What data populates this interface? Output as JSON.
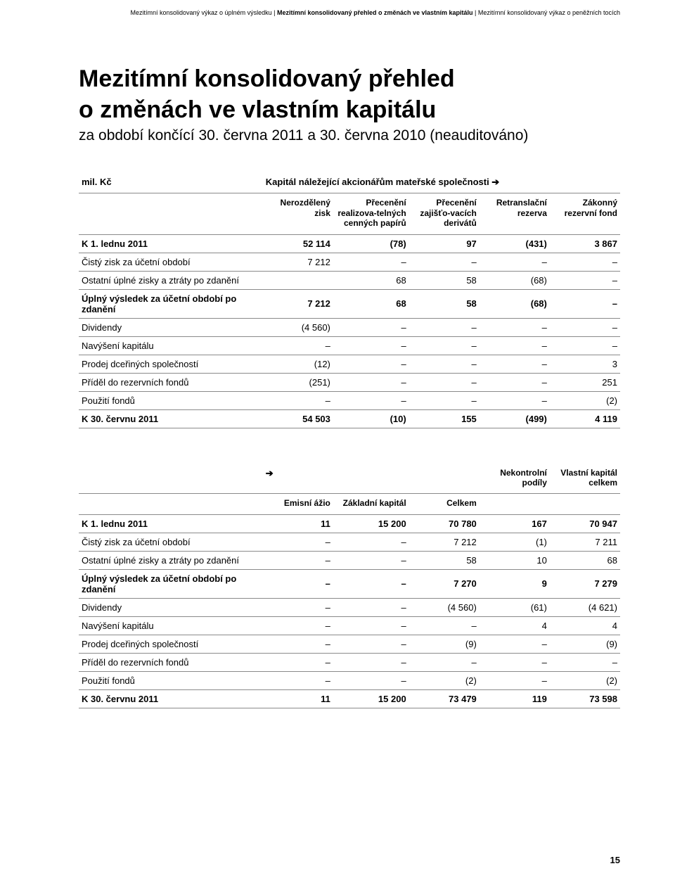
{
  "breadcrumb": {
    "seg1": "Mezitímní konsolidovaný výkaz o úplném výsledku",
    "seg2": "Mezitímní konsolidovaný přehled o změnách ve vlastním kapitálu",
    "seg3": "Mezitímní konsolidovaný výkaz o peněžních tocích"
  },
  "title_line1": "Mezitímní konsolidovaný přehled",
  "title_line2": "o změnách ve vlastním kapitálu",
  "subtitle": "za období končící 30. června 2011 a 30. června 2010 (neauditováno)",
  "currency_label": "mil. Kč",
  "group_label": "Kapitál náležející akcionářům mateřské společnosti ➔",
  "arrow_only": "➔",
  "t1": {
    "headers": [
      "Nerozdělený zisk",
      "Přecenění realizova-telných cenných papírů",
      "Přecenění zajišťo-vacích derivátů",
      "Retranslační rezerva",
      "Zákonný rezervní fond"
    ],
    "rows": [
      {
        "bold": true,
        "label": "K 1. lednu 2011",
        "c": [
          "52 114",
          "(78)",
          "97",
          "(431)",
          "3 867"
        ]
      },
      {
        "bold": false,
        "label": "Čistý zisk za účetní období",
        "c": [
          "7 212",
          "–",
          "–",
          "–",
          "–"
        ]
      },
      {
        "bold": false,
        "label": "Ostatní úplné zisky a ztráty po zdanění",
        "c": [
          "",
          "68",
          "58",
          "(68)",
          "–"
        ]
      },
      {
        "bold": true,
        "label": "Úplný výsledek za účetní období po zdanění",
        "c": [
          "7 212",
          "68",
          "58",
          "(68)",
          "–"
        ]
      },
      {
        "bold": false,
        "label": "Dividendy",
        "c": [
          "(4 560)",
          "–",
          "–",
          "–",
          "–"
        ]
      },
      {
        "bold": false,
        "label": "Navýšení kapitálu",
        "c": [
          "–",
          "–",
          "–",
          "–",
          "–"
        ]
      },
      {
        "bold": false,
        "label": "Prodej dceřiných společností",
        "c": [
          "(12)",
          "–",
          "–",
          "–",
          "3"
        ]
      },
      {
        "bold": false,
        "label": "Příděl do rezervních fondů",
        "c": [
          "(251)",
          "–",
          "–",
          "–",
          "251"
        ]
      },
      {
        "bold": false,
        "label": "Použití fondů",
        "c": [
          "–",
          "–",
          "–",
          "–",
          "(2)"
        ]
      },
      {
        "bold": true,
        "label": "K 30. červnu 2011",
        "c": [
          "54 503",
          "(10)",
          "155",
          "(499)",
          "4 119"
        ]
      }
    ]
  },
  "t2": {
    "headers": [
      "Emisní ážio",
      "Základní kapitál",
      "Celkem",
      "Nekontrolní podíly",
      "Vlastní kapitál celkem"
    ],
    "rows": [
      {
        "bold": true,
        "label": "K 1. lednu 2011",
        "c": [
          "11",
          "15 200",
          "70 780",
          "167",
          "70 947"
        ]
      },
      {
        "bold": false,
        "label": "Čistý zisk za účetní období",
        "c": [
          "–",
          "–",
          "7 212",
          "(1)",
          "7 211"
        ]
      },
      {
        "bold": false,
        "label": "Ostatní úplné zisky a ztráty po zdanění",
        "c": [
          "–",
          "–",
          "58",
          "10",
          "68"
        ]
      },
      {
        "bold": true,
        "label": "Úplný výsledek za účetní období po zdanění",
        "c": [
          "–",
          "–",
          "7 270",
          "9",
          "7 279"
        ]
      },
      {
        "bold": false,
        "label": "Dividendy",
        "c": [
          "–",
          "–",
          "(4 560)",
          "(61)",
          "(4 621)"
        ]
      },
      {
        "bold": false,
        "label": "Navýšení kapitálu",
        "c": [
          "–",
          "–",
          "–",
          "4",
          "4"
        ]
      },
      {
        "bold": false,
        "label": "Prodej dceřiných společností",
        "c": [
          "–",
          "–",
          "(9)",
          "–",
          "(9)"
        ]
      },
      {
        "bold": false,
        "label": "Příděl do rezervních fondů",
        "c": [
          "–",
          "–",
          "–",
          "–",
          "–"
        ]
      },
      {
        "bold": false,
        "label": "Použití fondů",
        "c": [
          "–",
          "–",
          "(2)",
          "–",
          "(2)"
        ]
      },
      {
        "bold": true,
        "label": "K 30. červnu 2011",
        "c": [
          "11",
          "15 200",
          "73 479",
          "119",
          "73 598"
        ]
      }
    ]
  },
  "colwidths_t1": [
    "34%",
    "13%",
    "14%",
    "13%",
    "13%",
    "13%"
  ],
  "colwidths_t2": [
    "34%",
    "13%",
    "14%",
    "13%",
    "13%",
    "13%"
  ],
  "pagenum": "15",
  "colors": {
    "text": "#000000",
    "border": "#8a8a8a",
    "bg": "#ffffff"
  }
}
